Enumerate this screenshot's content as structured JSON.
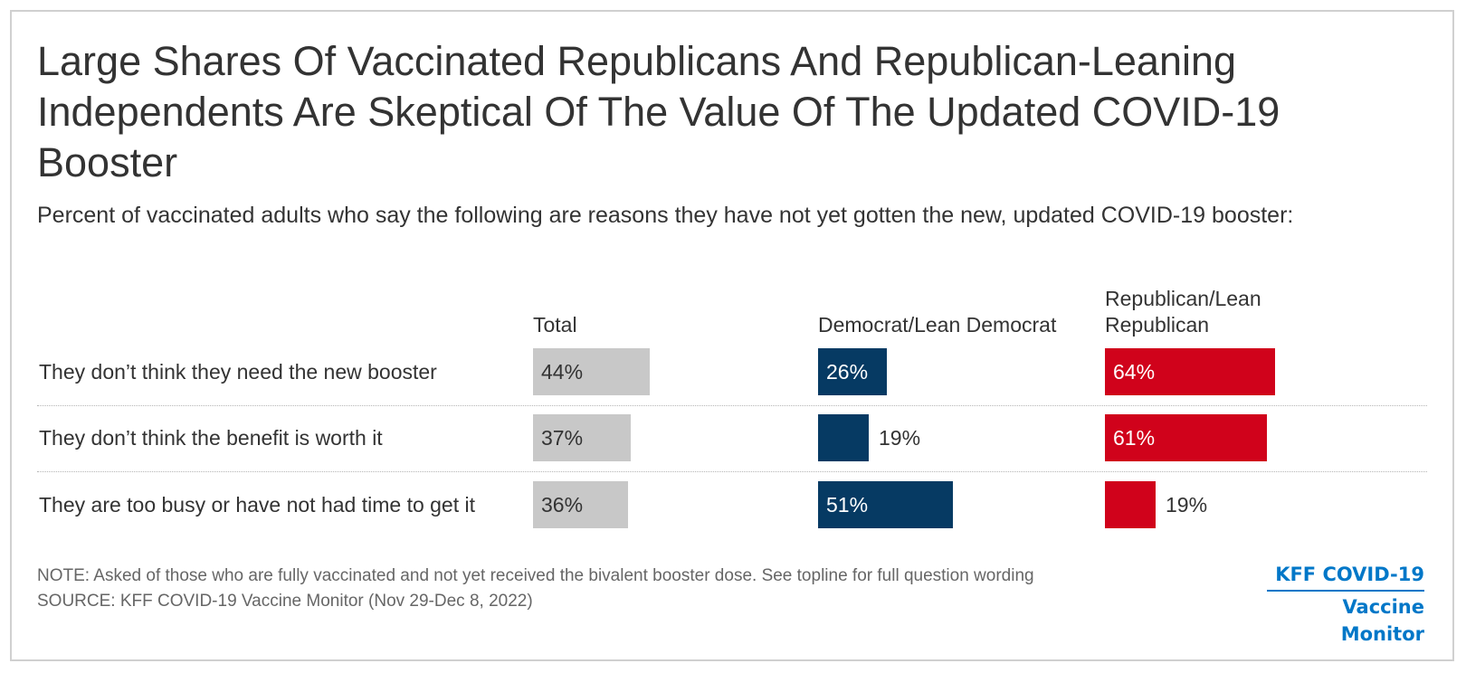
{
  "header": {
    "title": "Large Shares Of Vaccinated Republicans And Republican-Leaning Independents Are Skeptical Of The Value Of The Updated COVID-19 Booster",
    "subtitle": "Percent of vaccinated adults who say the following are reasons they have not yet gotten the new, updated COVID-19 booster:"
  },
  "chart_data": {
    "type": "bar",
    "categories": [
      "They don’t think they need the new booster",
      "They don’t think the benefit is worth it",
      "They are too busy or have not had time to get it"
    ],
    "series": [
      {
        "name": "Total",
        "values": [
          44,
          37,
          36
        ],
        "color": "#c8c8c8",
        "label_color": "#333333"
      },
      {
        "name": "Democrat/Lean Democrat",
        "values": [
          26,
          19,
          51
        ],
        "color": "#063a63",
        "label_color": "#ffffff"
      },
      {
        "name": "Republican/Lean Republican",
        "values": [
          64,
          61,
          19
        ],
        "color": "#d0021b",
        "label_color": "#ffffff"
      }
    ],
    "value_suffix": "%",
    "orientation": "horizontal",
    "layout": "small-multiples",
    "grid": false
  },
  "footer": {
    "note": "NOTE: Asked of those who are fully vaccinated and not yet received the bivalent booster dose. See topline for full question wording",
    "source": "SOURCE: KFF COVID-19 Vaccine Monitor (Nov 29-Dec 8, 2022)"
  },
  "logo": {
    "line1": "KFF COVID-19",
    "line2": "Vaccine Monitor",
    "color": "#0077c8"
  }
}
